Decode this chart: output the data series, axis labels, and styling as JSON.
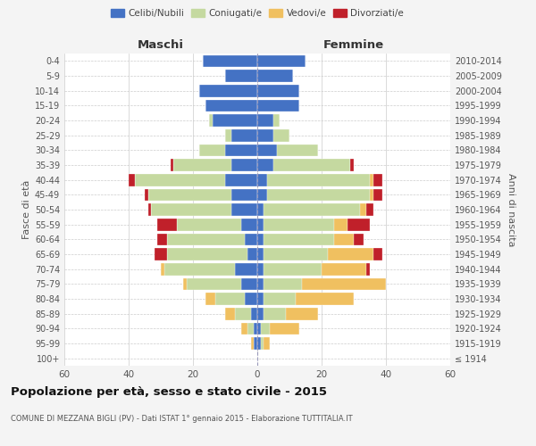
{
  "age_groups": [
    "100+",
    "95-99",
    "90-94",
    "85-89",
    "80-84",
    "75-79",
    "70-74",
    "65-69",
    "60-64",
    "55-59",
    "50-54",
    "45-49",
    "40-44",
    "35-39",
    "30-34",
    "25-29",
    "20-24",
    "15-19",
    "10-14",
    "5-9",
    "0-4"
  ],
  "birth_years": [
    "≤ 1914",
    "1915-1919",
    "1920-1924",
    "1925-1929",
    "1930-1934",
    "1935-1939",
    "1940-1944",
    "1945-1949",
    "1950-1954",
    "1955-1959",
    "1960-1964",
    "1965-1969",
    "1970-1974",
    "1975-1979",
    "1980-1984",
    "1985-1989",
    "1990-1994",
    "1995-1999",
    "2000-2004",
    "2005-2009",
    "2010-2014"
  ],
  "male": {
    "celibe": [
      0,
      1,
      1,
      2,
      4,
      5,
      7,
      3,
      4,
      5,
      8,
      8,
      10,
      8,
      10,
      8,
      14,
      16,
      18,
      10,
      17
    ],
    "coniugato": [
      0,
      0,
      2,
      5,
      9,
      17,
      22,
      25,
      24,
      20,
      25,
      26,
      28,
      18,
      8,
      2,
      1,
      0,
      0,
      0,
      0
    ],
    "vedovo": [
      0,
      1,
      2,
      3,
      3,
      1,
      1,
      0,
      0,
      0,
      0,
      0,
      0,
      0,
      0,
      0,
      0,
      0,
      0,
      0,
      0
    ],
    "divorziato": [
      0,
      0,
      0,
      0,
      0,
      0,
      0,
      4,
      3,
      6,
      1,
      1,
      2,
      1,
      0,
      0,
      0,
      0,
      0,
      0,
      0
    ]
  },
  "female": {
    "nubile": [
      0,
      1,
      1,
      2,
      2,
      2,
      2,
      2,
      2,
      2,
      2,
      3,
      3,
      5,
      6,
      5,
      5,
      13,
      13,
      11,
      15
    ],
    "coniugata": [
      0,
      1,
      3,
      7,
      10,
      12,
      18,
      20,
      22,
      22,
      30,
      32,
      32,
      24,
      13,
      5,
      2,
      0,
      0,
      0,
      0
    ],
    "vedova": [
      0,
      2,
      9,
      10,
      18,
      26,
      14,
      14,
      6,
      4,
      2,
      1,
      1,
      0,
      0,
      0,
      0,
      0,
      0,
      0,
      0
    ],
    "divorziata": [
      0,
      0,
      0,
      0,
      0,
      0,
      1,
      3,
      3,
      7,
      2,
      3,
      3,
      1,
      0,
      0,
      0,
      0,
      0,
      0,
      0
    ]
  },
  "colors": {
    "celibe_nubile": "#4472c4",
    "coniugato_a": "#c5d9a0",
    "vedovo_a": "#f0c060",
    "divorziato_a": "#c0202a"
  },
  "xlim": 60,
  "title": "Popolazione per età, sesso e stato civile - 2015",
  "subtitle": "COMUNE DI MEZZANA BIGLI (PV) - Dati ISTAT 1° gennaio 2015 - Elaborazione TUTTITALIA.IT",
  "xlabel_left": "Maschi",
  "xlabel_right": "Femmine",
  "ylabel_left": "Fasce di età",
  "ylabel_right": "Anni di nascita",
  "legend_labels": [
    "Celibi/Nubili",
    "Coniugati/e",
    "Vedovi/e",
    "Divorziati/e"
  ],
  "bg_color": "#f4f4f4",
  "plot_bg_color": "#ffffff"
}
